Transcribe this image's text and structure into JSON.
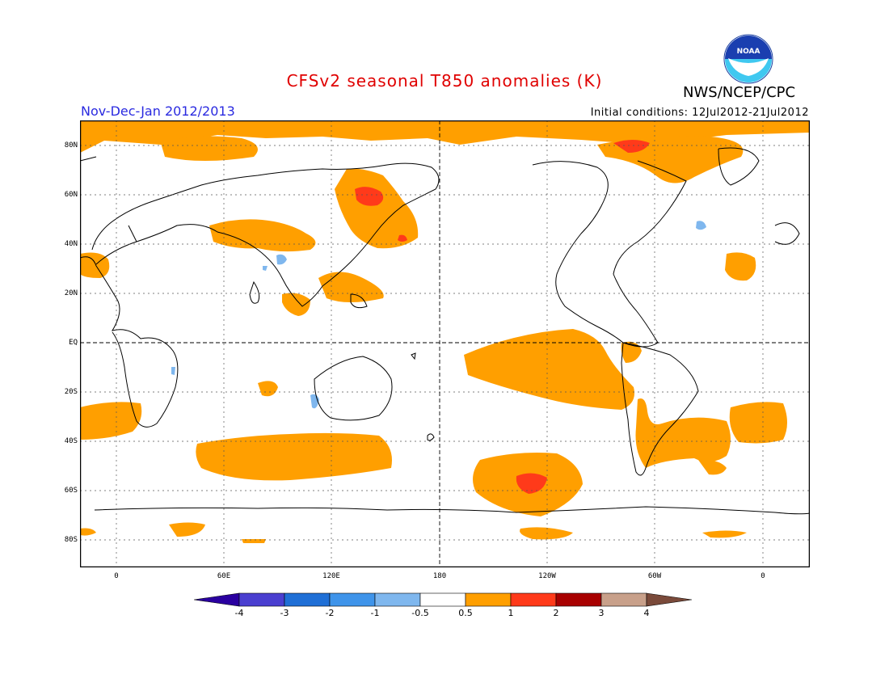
{
  "title": "CFSv2 seasonal T850 anomalies (K)",
  "period": "Nov-Dec-Jan 2012/2013",
  "initial_conditions": "Initial conditions: 12Jul2012-21Jul2012",
  "agency": "NWS/NCEP/CPC",
  "logo_text": "NOAA",
  "lat_labels": [
    "80N",
    "60N",
    "40N",
    "20N",
    "EQ",
    "20S",
    "40S",
    "60S",
    "80S"
  ],
  "lon_labels": [
    "0",
    "60E",
    "120E",
    "180",
    "120W",
    "60W",
    "0"
  ],
  "colorbar": {
    "labels": [
      "-4",
      "-3",
      "-2",
      "-1",
      "-0.5",
      "0.5",
      "1",
      "2",
      "3",
      "4"
    ],
    "colors": [
      "#2a00a0",
      "#4a3fd0",
      "#1f6fd6",
      "#3f94ea",
      "#7fb7ee",
      "#ffffff",
      "#ff9f00",
      "#ff3a1a",
      "#a80000",
      "#c8a08a",
      "#7a4a3a"
    ]
  },
  "colors": {
    "warm1": "#ff9f00",
    "warm2": "#ff3a1a",
    "cool1": "#7fb7ee"
  }
}
